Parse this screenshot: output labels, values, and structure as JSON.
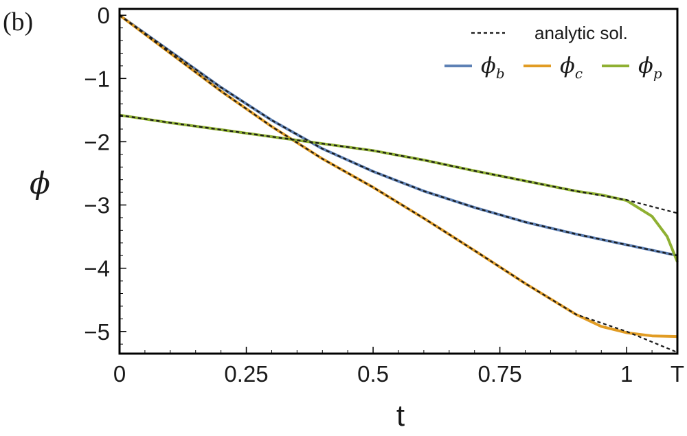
{
  "panel_label": "(b)",
  "chart_data": {
    "type": "line",
    "xlabel": "t",
    "ylabel": "ϕ",
    "xlim": [
      0,
      1.1
    ],
    "ylim": [
      -5.35,
      0.1
    ],
    "x_ticks": [
      {
        "value": 0,
        "label": "0"
      },
      {
        "value": 0.25,
        "label": "0.25"
      },
      {
        "value": 0.5,
        "label": "0.5"
      },
      {
        "value": 0.75,
        "label": "0.75"
      },
      {
        "value": 1,
        "label": "1"
      },
      {
        "value": 1.1,
        "label": "T"
      }
    ],
    "y_ticks": [
      {
        "value": 0,
        "label": "0"
      },
      {
        "value": -1,
        "label": "−1"
      },
      {
        "value": -2,
        "label": "−2"
      },
      {
        "value": -3,
        "label": "−3"
      },
      {
        "value": -4,
        "label": "−4"
      },
      {
        "value": -5,
        "label": "−5"
      }
    ],
    "legend": {
      "position": "top-right",
      "analytic_label": "analytic sol.",
      "entries": [
        {
          "symbol": "ϕ",
          "subscript": "b",
          "color": "#5e81b5"
        },
        {
          "symbol": "ϕ",
          "subscript": "c",
          "color": "#e19c24"
        },
        {
          "symbol": "ϕ",
          "subscript": "p",
          "color": "#8fb032"
        }
      ]
    },
    "series": [
      {
        "name": "ϕb",
        "color": "#5e81b5",
        "points": [
          [
            0,
            0
          ],
          [
            0.1,
            -0.57
          ],
          [
            0.2,
            -1.14
          ],
          [
            0.3,
            -1.66
          ],
          [
            0.4,
            -2.11
          ],
          [
            0.5,
            -2.47
          ],
          [
            0.6,
            -2.78
          ],
          [
            0.7,
            -3.04
          ],
          [
            0.8,
            -3.27
          ],
          [
            0.9,
            -3.46
          ],
          [
            1.0,
            -3.63
          ],
          [
            1.1,
            -3.8
          ]
        ]
      },
      {
        "name": "ϕc",
        "color": "#e19c24",
        "points": [
          [
            0,
            0
          ],
          [
            0.1,
            -0.6
          ],
          [
            0.2,
            -1.2
          ],
          [
            0.3,
            -1.76
          ],
          [
            0.4,
            -2.27
          ],
          [
            0.5,
            -2.72
          ],
          [
            0.6,
            -3.21
          ],
          [
            0.7,
            -3.72
          ],
          [
            0.8,
            -4.24
          ],
          [
            0.9,
            -4.73
          ],
          [
            0.95,
            -4.92
          ],
          [
            1.0,
            -5.02
          ],
          [
            1.05,
            -5.07
          ],
          [
            1.1,
            -5.08
          ]
        ]
      },
      {
        "name": "ϕp",
        "color": "#8fb032",
        "points": [
          [
            0,
            -1.58
          ],
          [
            0.1,
            -1.7
          ],
          [
            0.2,
            -1.81
          ],
          [
            0.3,
            -1.92
          ],
          [
            0.4,
            -2.03
          ],
          [
            0.5,
            -2.14
          ],
          [
            0.6,
            -2.29
          ],
          [
            0.7,
            -2.46
          ],
          [
            0.8,
            -2.62
          ],
          [
            0.9,
            -2.78
          ],
          [
            0.95,
            -2.84
          ],
          [
            1.0,
            -2.93
          ],
          [
            1.05,
            -3.18
          ],
          [
            1.08,
            -3.5
          ],
          [
            1.1,
            -3.9
          ]
        ]
      },
      {
        "name": "analytic sol.",
        "style": "dashed",
        "color": "#1a1a1a",
        "lines": [
          [
            [
              0,
              0
            ],
            [
              0.1,
              -0.57
            ],
            [
              0.2,
              -1.14
            ],
            [
              0.3,
              -1.66
            ],
            [
              0.4,
              -2.11
            ],
            [
              0.5,
              -2.47
            ],
            [
              0.6,
              -2.78
            ],
            [
              0.7,
              -3.04
            ],
            [
              0.8,
              -3.27
            ],
            [
              0.9,
              -3.46
            ],
            [
              1.0,
              -3.63
            ],
            [
              1.1,
              -3.8
            ]
          ],
          [
            [
              0,
              0
            ],
            [
              0.1,
              -0.6
            ],
            [
              0.2,
              -1.2
            ],
            [
              0.3,
              -1.76
            ],
            [
              0.4,
              -2.27
            ],
            [
              0.5,
              -2.72
            ],
            [
              0.6,
              -3.21
            ],
            [
              0.7,
              -3.72
            ],
            [
              0.8,
              -4.24
            ],
            [
              0.9,
              -4.73
            ],
            [
              1.0,
              -5.0
            ],
            [
              1.1,
              -5.33
            ]
          ],
          [
            [
              0,
              -1.58
            ],
            [
              0.1,
              -1.7
            ],
            [
              0.2,
              -1.81
            ],
            [
              0.3,
              -1.92
            ],
            [
              0.4,
              -2.03
            ],
            [
              0.5,
              -2.14
            ],
            [
              0.6,
              -2.29
            ],
            [
              0.7,
              -2.46
            ],
            [
              0.8,
              -2.62
            ],
            [
              0.9,
              -2.78
            ],
            [
              1.0,
              -2.92
            ],
            [
              1.1,
              -3.13
            ]
          ]
        ]
      }
    ]
  }
}
